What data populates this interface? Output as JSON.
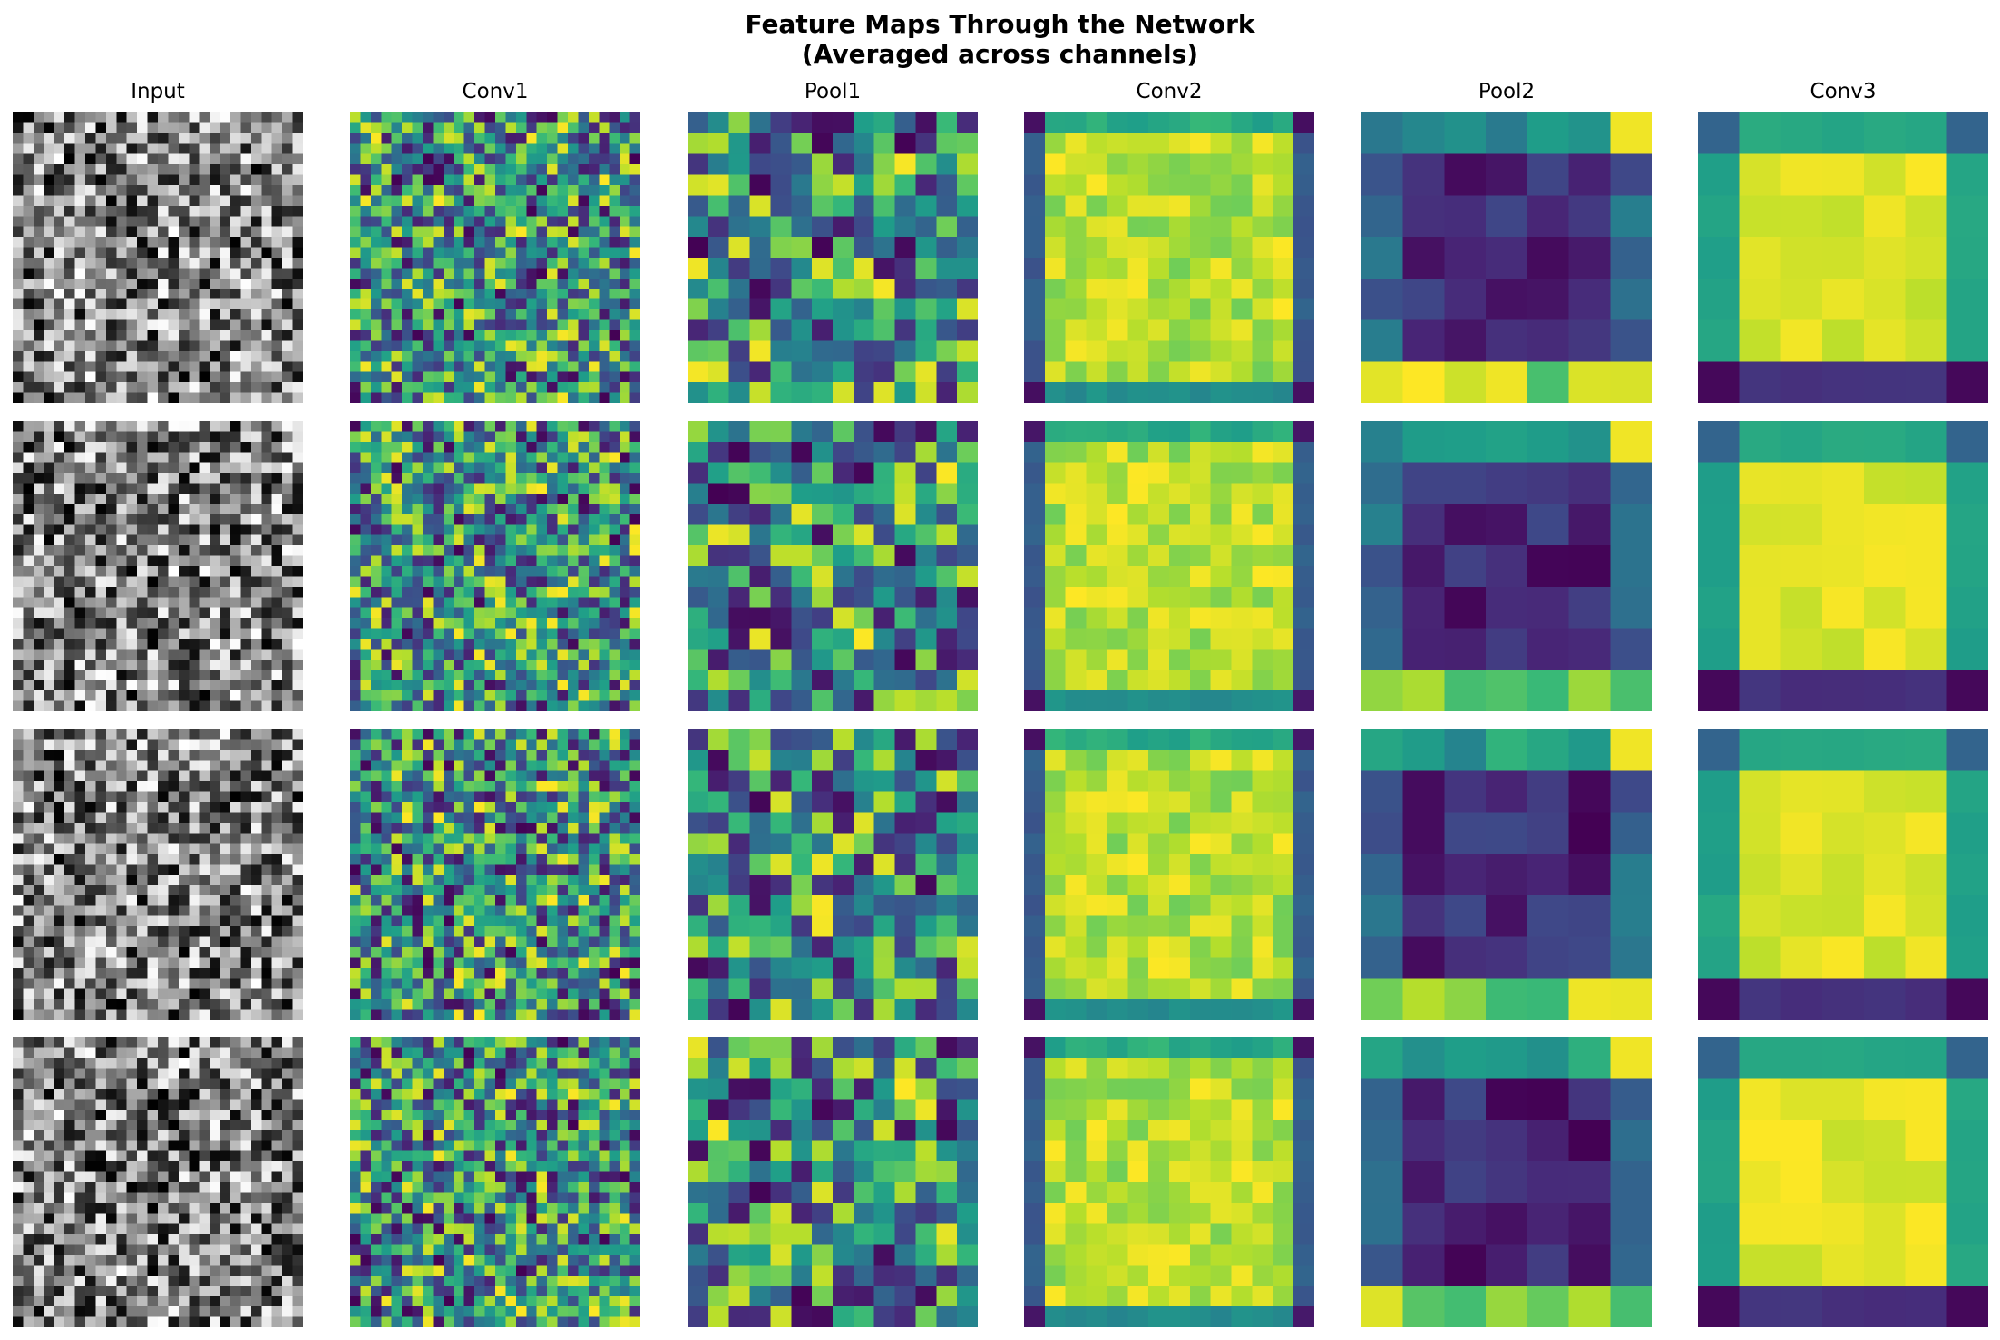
{
  "chart_data": {
    "type": "heatmap",
    "title": "Feature Maps Through the Network",
    "subtitle": "(Averaged across channels)",
    "columns": [
      {
        "name": "Input",
        "grid_size": 28,
        "colormap": "gray",
        "pattern": "random"
      },
      {
        "name": "Conv1",
        "grid_size": 28,
        "colormap": "viridis",
        "pattern": "random"
      },
      {
        "name": "Pool1",
        "grid_size": 14,
        "colormap": "viridis",
        "pattern": "random"
      },
      {
        "name": "Conv2",
        "grid_size": 14,
        "colormap": "viridis",
        "pattern": "border_low_center_high"
      },
      {
        "name": "Pool2",
        "grid_size": 7,
        "colormap": "viridis",
        "pattern": "center_low_border_high"
      },
      {
        "name": "Conv3",
        "grid_size": 7,
        "colormap": "viridis",
        "pattern": "center_high_border_mid"
      }
    ],
    "rows": 4,
    "axes_visible": false,
    "colorbar": false
  }
}
